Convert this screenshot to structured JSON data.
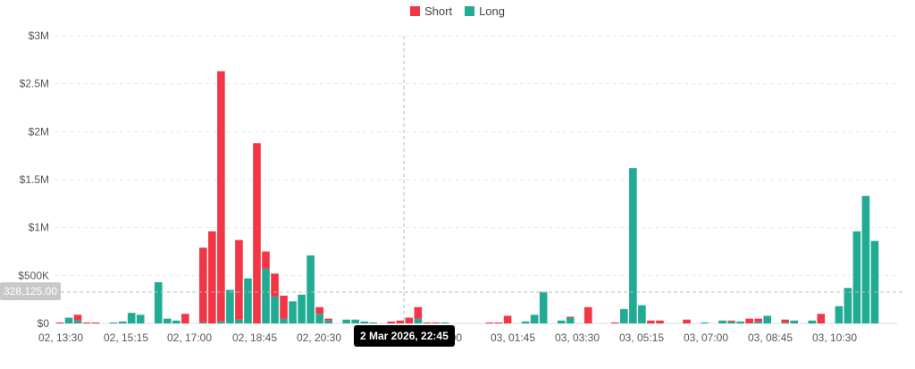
{
  "legend": {
    "short_label": "Short",
    "long_label": "Long",
    "short_color": "#f23645",
    "long_color": "#22ab94"
  },
  "crosshair": {
    "y_value_label": "328,125.00",
    "x_value_label": "2 Mar 2026, 22:45"
  },
  "chart_data": {
    "type": "bar",
    "stacked": true,
    "interval": "15 min",
    "ylim": [
      0,
      3000000
    ],
    "y_ticks": [
      0,
      500000,
      1000000,
      1500000,
      2000000,
      2500000,
      3000000
    ],
    "y_tick_labels": [
      "$0",
      "$500K",
      "$1M",
      "$1.5M",
      "$2M",
      "$2.5M",
      "$3M"
    ],
    "x_tick_labels": [
      "02, 13:30",
      "02, 15:15",
      "02, 17:00",
      "02, 18:45",
      "02, 20:30",
      "00:00",
      "03, 01:45",
      "03, 03:30",
      "03, 05:15",
      "03, 07:00",
      "03, 08:45",
      "03, 10:30"
    ],
    "grid": true,
    "legend_position": "top",
    "series": [
      {
        "name": "Short",
        "color": "#f23645",
        "values": [
          10000,
          0,
          60000,
          10000,
          10000,
          0,
          0,
          0,
          0,
          0,
          0,
          0,
          0,
          0,
          100000,
          0,
          780000,
          960000,
          2610000,
          0,
          830000,
          0,
          1880000,
          180000,
          240000,
          240000,
          0,
          0,
          0,
          70000,
          20000,
          0,
          0,
          0,
          0,
          0,
          0,
          20000,
          30000,
          60000,
          120000,
          10000,
          10000,
          0,
          0,
          0,
          0,
          0,
          10000,
          10000,
          80000,
          0,
          0,
          0,
          0,
          0,
          0,
          10000,
          0,
          170000,
          0,
          0,
          10000,
          0,
          0,
          0,
          30000,
          30000,
          0,
          0,
          40000,
          0,
          0,
          0,
          0,
          10000,
          0,
          50000,
          30000,
          0,
          0,
          30000,
          0,
          0,
          0,
          100000,
          0,
          0,
          0,
          0,
          0,
          0,
          0,
          0
        ]
      },
      {
        "name": "Long",
        "color": "#22ab94",
        "values": [
          0,
          60000,
          30000,
          0,
          0,
          0,
          10000,
          20000,
          110000,
          90000,
          0,
          430000,
          50000,
          30000,
          0,
          0,
          10000,
          0,
          20000,
          350000,
          40000,
          470000,
          0,
          570000,
          280000,
          50000,
          230000,
          300000,
          710000,
          100000,
          30000,
          0,
          40000,
          40000,
          20000,
          10000,
          0,
          0,
          0,
          0,
          50000,
          0,
          0,
          10000,
          0,
          0,
          0,
          0,
          0,
          0,
          0,
          0,
          20000,
          90000,
          330000,
          0,
          30000,
          60000,
          0,
          0,
          0,
          0,
          0,
          150000,
          1620000,
          190000,
          0,
          0,
          0,
          0,
          0,
          0,
          10000,
          0,
          30000,
          20000,
          20000,
          0,
          20000,
          80000,
          0,
          10000,
          30000,
          0,
          30000,
          0,
          0,
          180000,
          370000,
          960000,
          1330000,
          860000
        ]
      }
    ]
  }
}
